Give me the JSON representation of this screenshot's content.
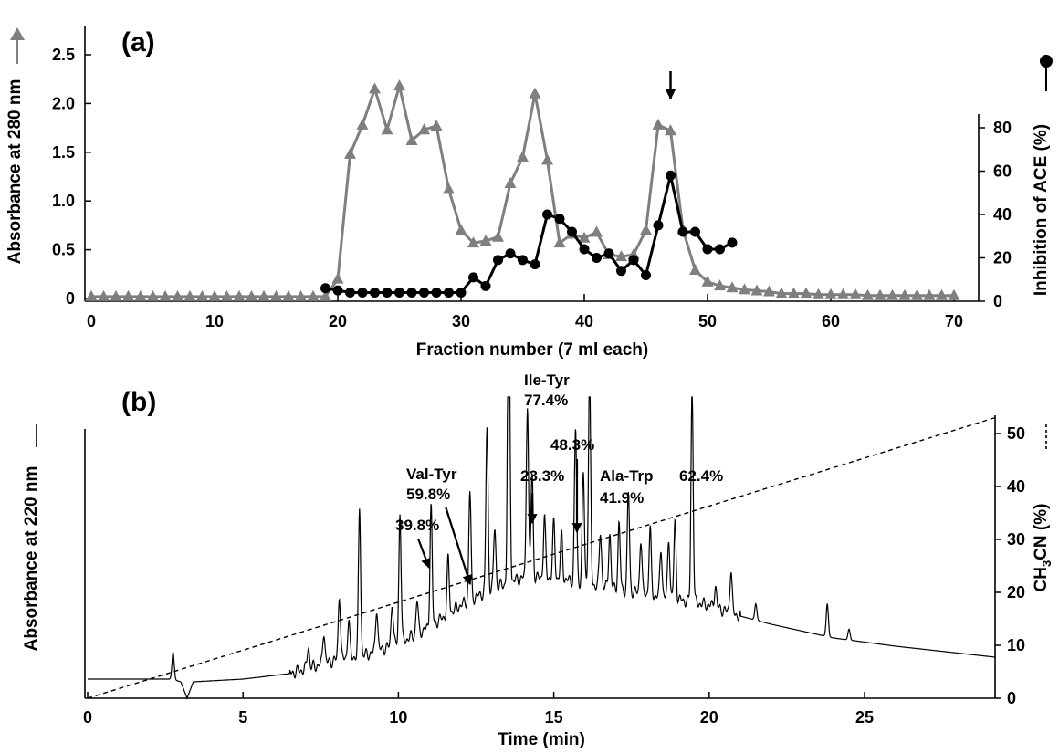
{
  "chart_data": [
    {
      "panel_label": "(a)",
      "type": "line",
      "xlabel": "Fraction number (7 ml each)",
      "ylabel": "Absorbance at 280 nm",
      "y2label": "Inhibition of ACE (%)",
      "xlim": [
        0,
        72
      ],
      "ylim": [
        0,
        2.6
      ],
      "y2lim": [
        0,
        100
      ],
      "xticks": [
        "0",
        "10",
        "20",
        "30",
        "40",
        "50",
        "60",
        "70"
      ],
      "yticks": [
        "0",
        "0.5",
        "1.0",
        "1.5",
        "2.0",
        "2.5"
      ],
      "y2ticks": [
        "0",
        "20",
        "40",
        "60",
        "80"
      ],
      "series": [
        {
          "marker": "triangle",
          "color": "#7f7f7f",
          "axis": "left",
          "x": [
            0,
            1,
            2,
            3,
            4,
            5,
            6,
            7,
            8,
            9,
            10,
            11,
            12,
            13,
            14,
            15,
            16,
            17,
            18,
            19,
            20,
            21,
            22,
            23,
            24,
            25,
            26,
            27,
            28,
            29,
            30,
            31,
            32,
            33,
            34,
            35,
            36,
            37,
            38,
            39,
            40,
            41,
            42,
            43,
            44,
            45,
            46,
            47,
            48,
            49,
            50,
            51,
            52,
            53,
            54,
            55,
            56,
            57,
            58,
            59,
            60,
            61,
            62,
            63,
            64,
            65,
            66,
            67,
            68,
            69,
            70
          ],
          "y": [
            0.02,
            0.02,
            0.02,
            0.02,
            0.02,
            0.02,
            0.02,
            0.02,
            0.02,
            0.02,
            0.02,
            0.02,
            0.02,
            0.02,
            0.02,
            0.02,
            0.02,
            0.02,
            0.02,
            0.02,
            0.2,
            1.48,
            1.78,
            2.15,
            1.73,
            2.18,
            1.62,
            1.73,
            1.77,
            1.12,
            0.7,
            0.57,
            0.59,
            0.63,
            1.18,
            1.45,
            2.1,
            1.42,
            0.57,
            0.66,
            0.62,
            0.68,
            0.45,
            0.43,
            0.45,
            0.7,
            1.78,
            1.72,
            0.71,
            0.29,
            0.17,
            0.13,
            0.11,
            0.09,
            0.08,
            0.07,
            0.05,
            0.05,
            0.05,
            0.04,
            0.04,
            0.04,
            0.04,
            0.03,
            0.03,
            0.03,
            0.03,
            0.03,
            0.03,
            0.03,
            0.03
          ]
        },
        {
          "marker": "circle",
          "color": "#000000",
          "axis": "right",
          "x": [
            19,
            20,
            21,
            22,
            23,
            24,
            25,
            26,
            27,
            28,
            29,
            30,
            31,
            32,
            33,
            34,
            35,
            36,
            37,
            38,
            39,
            40,
            41,
            42,
            43,
            44,
            45,
            46,
            47,
            48,
            49,
            50,
            51,
            52
          ],
          "y": [
            6,
            5,
            4,
            4,
            4,
            4,
            4,
            4,
            4,
            4,
            4,
            4,
            11,
            7,
            19,
            22,
            19,
            17,
            40,
            38,
            32,
            24,
            20,
            22,
            14,
            19,
            12,
            35,
            58,
            32,
            32,
            24,
            24,
            27
          ]
        }
      ],
      "annotations": [
        {
          "type": "arrow",
          "at_x": 47
        }
      ]
    },
    {
      "panel_label": "(b)",
      "type": "line",
      "xlabel": "Time (min)",
      "ylabel": "Absorbance at 220 nm",
      "y2label_prefix": "CH",
      "y2label_sub": "3",
      "y2label_suffix": "CN (%)",
      "xlim": [
        0,
        29.2
      ],
      "y2lim": [
        0,
        55
      ],
      "xticks": [
        "0",
        "5",
        "10",
        "15",
        "20",
        "25"
      ],
      "y2ticks": [
        "0",
        "10",
        "20",
        "30",
        "40",
        "50"
      ],
      "series": [
        {
          "style": "solid",
          "axis": "left",
          "baseline_time": [
            0,
            2.7,
            3.0,
            3.2,
            3.4,
            5,
            6.5,
            8,
            9,
            10,
            11,
            12,
            13,
            14,
            15,
            16,
            17,
            18,
            19,
            20,
            21,
            22,
            24,
            26,
            29.2
          ],
          "baseline_value": [
            0.035,
            0.035,
            0.03,
            0.0,
            0.03,
            0.035,
            0.045,
            0.07,
            0.08,
            0.1,
            0.13,
            0.17,
            0.2,
            0.22,
            0.22,
            0.21,
            0.2,
            0.19,
            0.18,
            0.17,
            0.15,
            0.135,
            0.11,
            0.095,
            0.075
          ],
          "peak_time": [
            2.75,
            7.1,
            7.6,
            8.1,
            8.4,
            8.75,
            9.3,
            9.8,
            10.05,
            10.6,
            11.05,
            11.6,
            12.3,
            12.85,
            13.1,
            13.55,
            14.15,
            14.3,
            14.7,
            15.0,
            15.25,
            15.7,
            15.95,
            16.15,
            16.5,
            16.8,
            17.1,
            17.4,
            17.8,
            18.1,
            18.45,
            18.7,
            18.9,
            19.45,
            20.2,
            20.7,
            21.5,
            23.8,
            24.5
          ],
          "peak_height": [
            0.05,
            0.04,
            0.06,
            0.12,
            0.07,
            0.27,
            0.08,
            0.08,
            0.24,
            0.06,
            0.22,
            0.1,
            0.2,
            0.3,
            0.11,
            0.68,
            0.32,
            0.19,
            0.11,
            0.1,
            0.08,
            0.28,
            0.2,
            0.39,
            0.1,
            0.1,
            0.12,
            0.18,
            0.1,
            0.12,
            0.09,
            0.11,
            0.14,
            0.39,
            0.04,
            0.08,
            0.03,
            0.06,
            0.02
          ]
        },
        {
          "style": "dashed",
          "axis": "right",
          "x": [
            0,
            29.2
          ],
          "y": [
            0,
            53
          ]
        }
      ],
      "annotations": [
        {
          "text": "Ile-Tyr",
          "text2": "77.4%",
          "at_x": 13.55
        },
        {
          "text": "Val-Tyr",
          "text2": "59.8%",
          "at_x": 12.35
        },
        {
          "text": "39.8%",
          "at_x": 11.05
        },
        {
          "text": "23.3%",
          "at_x": 14.15
        },
        {
          "text": "48.3%",
          "at_x": 15.7
        },
        {
          "text": "Ala-Trp",
          "text2": "41.9%",
          "at_x": 16.15
        },
        {
          "text": "62.4%",
          "at_x": 19.45
        }
      ]
    }
  ]
}
